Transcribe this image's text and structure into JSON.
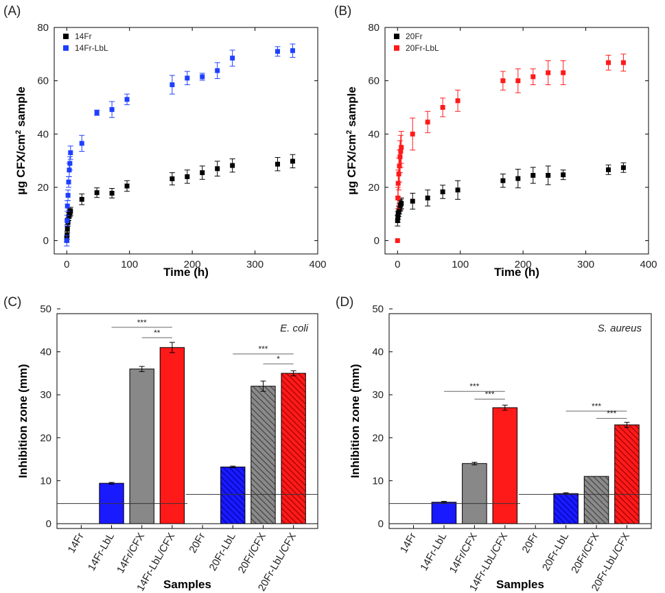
{
  "chart_data": [
    {
      "panel_label": "(A)",
      "type": "scatter",
      "xlabel": "Time (h)",
      "ylabel_pre": "µg CFX/cm",
      "ylabel_sup": "2",
      "ylabel_post": " sample",
      "xlim": [
        -20,
        400
      ],
      "ylim": [
        -5,
        80
      ],
      "xticks": [
        0,
        100,
        200,
        300,
        400
      ],
      "yticks": [
        0,
        20,
        40,
        60,
        80
      ],
      "legend_position": "top-left",
      "series": [
        {
          "name": "14Fr",
          "color": "#000000",
          "x": [
            0,
            0.5,
            1,
            2,
            3,
            4,
            5,
            6,
            24,
            48,
            72,
            96,
            168,
            192,
            216,
            240,
            264,
            336,
            360
          ],
          "y": [
            0.5,
            2,
            4.5,
            7,
            9,
            10,
            10.5,
            11,
            15.5,
            18,
            17.8,
            20.5,
            23.2,
            24,
            25.5,
            27,
            28.2,
            28.7,
            29.8
          ],
          "err": [
            1,
            1.5,
            1.5,
            1.5,
            1.5,
            1.5,
            1.5,
            1.5,
            2,
            1.8,
            1.8,
            2,
            2.3,
            2.5,
            2.5,
            2.8,
            2.5,
            2.5,
            2.5
          ]
        },
        {
          "name": "14Fr-LbL",
          "color": "#1e3fff",
          "x": [
            0,
            0.5,
            1,
            2,
            3,
            4,
            5,
            6,
            24,
            48,
            72,
            96,
            168,
            192,
            216,
            240,
            264,
            336,
            360
          ],
          "y": [
            0,
            7.5,
            13,
            17,
            22,
            26.5,
            29,
            33,
            36.5,
            48,
            49.2,
            53,
            58.5,
            61,
            61.5,
            63.8,
            68.5,
            71,
            71.3
          ],
          "err": [
            2,
            2,
            2,
            2,
            2,
            2.5,
            2.5,
            2.5,
            3,
            1,
            3,
            2,
            3.5,
            2.5,
            1.3,
            3,
            3,
            1.8,
            2.5
          ]
        }
      ]
    },
    {
      "panel_label": "(B)",
      "type": "scatter",
      "xlabel": "Time (h)",
      "ylabel_pre": "µg CFX/cm",
      "ylabel_sup": "2",
      "ylabel_post": " sample",
      "xlim": [
        -20,
        400
      ],
      "ylim": [
        -5,
        80
      ],
      "xticks": [
        0,
        100,
        200,
        300,
        400
      ],
      "yticks": [
        0,
        20,
        40,
        60,
        80
      ],
      "legend_position": "top-left",
      "series": [
        {
          "name": "20Fr",
          "color": "#000000",
          "x": [
            0,
            0.5,
            1,
            2,
            3,
            4,
            5,
            6,
            24,
            48,
            72,
            96,
            168,
            192,
            216,
            240,
            264,
            336,
            360
          ],
          "y": [
            7.5,
            9,
            10,
            11,
            12,
            13,
            13.5,
            14,
            14.8,
            16,
            18.3,
            19,
            22.5,
            23.3,
            24.5,
            24.5,
            24.7,
            26.6,
            27.4
          ],
          "err": [
            2,
            2,
            2,
            2,
            2,
            2,
            2,
            2,
            3,
            3,
            2.5,
            3.5,
            2.5,
            3.5,
            3,
            3.5,
            1.8,
            1.8,
            1.8
          ]
        },
        {
          "name": "20Fr-LbL",
          "color": "#ff1a1a",
          "x": [
            0,
            0.5,
            1,
            2,
            3,
            4,
            5,
            6,
            24,
            48,
            72,
            96,
            168,
            192,
            216,
            240,
            264,
            336,
            360
          ],
          "y": [
            0,
            16,
            21.5,
            25,
            28,
            31.5,
            33.5,
            35,
            40,
            44.5,
            50,
            52.5,
            60,
            60,
            61.5,
            63,
            63,
            66.8,
            66.8
          ],
          "err": [
            0,
            4,
            5,
            6,
            6,
            6,
            6,
            6,
            6,
            4,
            3.5,
            4,
            3.5,
            4.5,
            3,
            4.5,
            4.5,
            2.8,
            3.2
          ]
        }
      ]
    },
    {
      "panel_label": "(C)",
      "type": "bar",
      "organism": "E. coli",
      "xlabel": "Samples",
      "ylabel": "Inhibition zone (mm)",
      "ylim": [
        0,
        50
      ],
      "yticks": [
        0,
        10,
        20,
        30,
        40,
        50
      ],
      "categories": [
        "14Fr",
        "14Fr-LbL",
        "14Fr/CFX",
        "14Fr-LbL/CFX",
        "20Fr",
        "20Fr-LbL",
        "20Fr/CFX",
        "20Fr-LbL/CFX"
      ],
      "values": [
        0,
        9.4,
        36,
        41,
        0,
        13.2,
        32,
        35
      ],
      "errors": [
        0,
        0.2,
        0.6,
        1.2,
        0,
        0.2,
        1.2,
        0.6
      ],
      "colors": [
        "#1a1aff",
        "#1a1aff",
        "#888888",
        "#ff1a1a",
        "#1a1aff",
        "#1a1aff",
        "#888888",
        "#ff1a1a"
      ],
      "hatched": [
        false,
        false,
        false,
        false,
        true,
        true,
        true,
        true
      ],
      "reference_lines": [
        {
          "from_category": 0,
          "to_category": 3,
          "value": 4.7
        },
        {
          "from_category": 4,
          "to_category": 7,
          "value": 6.8
        }
      ],
      "significance": [
        {
          "from": 1,
          "to": 3,
          "y": 45.7,
          "label": "***"
        },
        {
          "from": 2,
          "to": 3,
          "y": 43.3,
          "label": "**"
        },
        {
          "from": 5,
          "to": 7,
          "y": 39.5,
          "label": "***"
        },
        {
          "from": 6,
          "to": 7,
          "y": 37.2,
          "label": "*"
        }
      ]
    },
    {
      "panel_label": "(D)",
      "type": "bar",
      "organism": "S. aureus",
      "xlabel": "Samples",
      "ylabel": "Inhibition zone (mm)",
      "ylim": [
        0,
        50
      ],
      "yticks": [
        0,
        10,
        20,
        30,
        40,
        50
      ],
      "categories": [
        "14Fr",
        "14Fr-LbL",
        "14Fr/CFX",
        "14Fr-LbL/CFX",
        "20Fr",
        "20Fr-LbL",
        "20Fr/CFX",
        "20Fr-LbL/CFX"
      ],
      "values": [
        0,
        5,
        14,
        27,
        0,
        7,
        11,
        23
      ],
      "errors": [
        0,
        0.2,
        0.3,
        0.6,
        0,
        0.2,
        0,
        0.6
      ],
      "colors": [
        "#1a1aff",
        "#1a1aff",
        "#888888",
        "#ff1a1a",
        "#1a1aff",
        "#1a1aff",
        "#888888",
        "#ff1a1a"
      ],
      "hatched": [
        false,
        false,
        false,
        false,
        true,
        true,
        true,
        true
      ],
      "reference_lines": [
        {
          "from_category": 0,
          "to_category": 3,
          "value": 4.7
        },
        {
          "from_category": 4,
          "to_category": 7,
          "value": 6.8
        }
      ],
      "significance": [
        {
          "from": 1,
          "to": 3,
          "y": 30.8,
          "label": "***"
        },
        {
          "from": 2,
          "to": 3,
          "y": 29,
          "label": "***"
        },
        {
          "from": 5,
          "to": 7,
          "y": 26.2,
          "label": "***"
        },
        {
          "from": 6,
          "to": 7,
          "y": 24.5,
          "label": "***"
        }
      ]
    }
  ]
}
